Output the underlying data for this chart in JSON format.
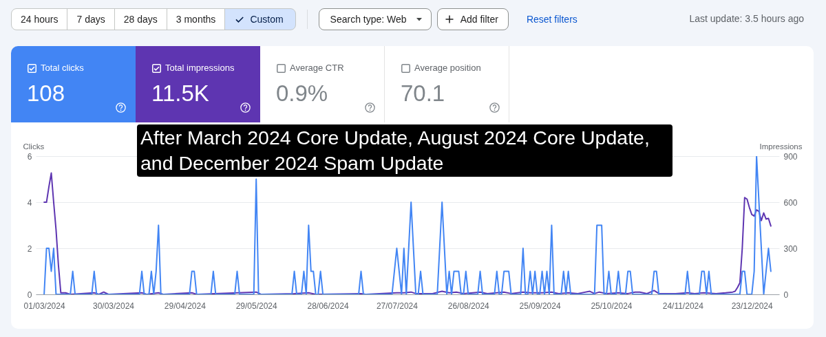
{
  "chart_data": [
    {
      "type": "other",
      "annotations": [
        "24 hours",
        "7 days",
        "28 days",
        "3 months",
        "Custom",
        "Search type: Web",
        "Add filter",
        "Reset filters",
        "Last update: 3.5 hours ago"
      ],
      "categories": [
        "Total clicks",
        "Total impressions",
        "Average CTR",
        "Average position"
      ],
      "value_labels": [
        "108",
        "11.5K",
        "0.9%",
        "70.1"
      ],
      "colors": [
        "#4285f4",
        "#5e35b1",
        "#ffffff",
        "#ffffff"
      ]
    },
    {
      "type": "line",
      "title": "After March 2024 Core Update, August 2024 Core Update, and December 2024 Spam Update",
      "ylabel": "Clicks",
      "y2label": "Impressions",
      "xlim": [
        "2024-02-26T12:00",
        "2025-01-03T12:00"
      ],
      "xticks": [
        {
          "value": "2024-03-01",
          "label": "01/03/2024"
        },
        {
          "value": "2024-03-30",
          "label": "30/03/2024"
        },
        {
          "value": "2024-04-29",
          "label": "29/04/2024"
        },
        {
          "value": "2024-05-29",
          "label": "29/05/2024"
        },
        {
          "value": "2024-06-28",
          "label": "28/06/2024"
        },
        {
          "value": "2024-07-27",
          "label": "27/07/2024"
        },
        {
          "value": "2024-08-26",
          "label": "26/08/2024"
        },
        {
          "value": "2024-09-25",
          "label": "25/09/2024"
        },
        {
          "value": "2024-10-25",
          "label": "25/10/2024"
        },
        {
          "value": "2024-11-24",
          "label": "24/11/2024"
        },
        {
          "value": "2024-12-23",
          "label": "23/12/2024"
        }
      ],
      "ylim": [
        0,
        6
      ],
      "yticks": [
        0,
        2,
        4,
        6
      ],
      "y2lim": [
        0,
        900
      ],
      "y2ticks": [
        0,
        300,
        600,
        900
      ],
      "grid": "y",
      "series": [
        {
          "color": "#4285f4",
          "x": [
            "2024-03-01",
            "2024-03-02",
            "2024-03-03",
            "2024-03-04",
            "2024-03-05",
            "2024-03-06",
            "2024-03-12",
            "2024-03-13",
            "2024-03-14",
            "2024-03-21",
            "2024-03-22",
            "2024-03-23",
            "2024-04-10",
            "2024-04-11",
            "2024-04-12",
            "2024-04-14",
            "2024-04-15",
            "2024-04-16",
            "2024-04-17",
            "2024-04-18",
            "2024-04-19",
            "2024-05-01",
            "2024-05-02",
            "2024-05-03",
            "2024-05-04",
            "2024-05-10",
            "2024-05-11",
            "2024-05-12",
            "2024-05-20",
            "2024-05-21",
            "2024-05-22",
            "2024-05-28",
            "2024-05-29",
            "2024-05-30",
            "2024-06-13",
            "2024-06-14",
            "2024-06-15",
            "2024-06-17",
            "2024-06-18",
            "2024-06-19",
            "2024-06-20",
            "2024-06-21",
            "2024-06-22",
            "2024-06-23",
            "2024-06-24",
            "2024-06-25",
            "2024-06-26",
            "2024-07-11",
            "2024-07-12",
            "2024-07-13",
            "2024-07-25",
            "2024-07-26",
            "2024-07-27",
            "2024-07-28",
            "2024-07-29",
            "2024-07-30",
            "2024-07-31",
            "2024-08-01",
            "2024-08-02",
            "2024-08-03",
            "2024-08-04",
            "2024-08-05",
            "2024-08-06",
            "2024-08-07",
            "2024-08-13",
            "2024-08-14",
            "2024-08-15",
            "2024-08-16",
            "2024-08-17",
            "2024-08-18",
            "2024-08-19",
            "2024-08-20",
            "2024-08-21",
            "2024-08-22",
            "2024-08-23",
            "2024-08-24",
            "2024-08-25",
            "2024-08-26",
            "2024-08-30",
            "2024-08-31",
            "2024-09-01",
            "2024-09-06",
            "2024-09-07",
            "2024-09-08",
            "2024-09-09",
            "2024-09-10",
            "2024-09-11",
            "2024-09-12",
            "2024-09-13",
            "2024-09-17",
            "2024-09-18",
            "2024-09-19",
            "2024-09-20",
            "2024-09-21",
            "2024-09-22",
            "2024-09-23",
            "2024-09-24",
            "2024-09-25",
            "2024-09-26",
            "2024-09-27",
            "2024-09-28",
            "2024-09-29",
            "2024-09-30",
            "2024-10-01",
            "2024-10-04",
            "2024-10-05",
            "2024-10-06",
            "2024-10-07",
            "2024-10-08",
            "2024-10-18",
            "2024-10-19",
            "2024-10-20",
            "2024-10-21",
            "2024-10-22",
            "2024-10-23",
            "2024-10-24",
            "2024-10-25",
            "2024-10-27",
            "2024-10-28",
            "2024-10-29",
            "2024-10-31",
            "2024-11-01",
            "2024-11-02",
            "2024-11-03",
            "2024-11-11",
            "2024-11-12",
            "2024-11-13",
            "2024-11-14",
            "2024-11-25",
            "2024-11-26",
            "2024-11-27",
            "2024-12-01",
            "2024-12-02",
            "2024-12-03",
            "2024-12-04",
            "2024-12-05",
            "2024-12-06",
            "2024-12-18",
            "2024-12-19",
            "2024-12-20",
            "2024-12-21",
            "2024-12-23",
            "2024-12-24",
            "2024-12-25",
            "2024-12-26",
            "2024-12-27",
            "2024-12-28",
            "2024-12-29",
            "2024-12-30",
            "2024-12-31"
          ],
          "values": [
            0,
            2,
            2,
            1,
            2,
            0,
            0,
            1,
            0,
            0,
            1,
            0,
            0,
            1,
            0,
            0,
            1,
            0,
            1,
            3,
            0,
            0,
            1,
            1,
            0,
            0,
            1,
            0,
            0,
            1,
            0,
            0,
            5,
            0,
            0,
            1,
            0,
            0,
            1,
            0,
            3,
            1,
            1,
            0,
            0,
            1,
            0,
            0,
            1,
            0,
            0,
            1,
            2,
            1,
            0,
            2,
            0,
            2,
            4,
            2,
            0,
            0,
            1,
            0,
            0,
            2,
            4,
            2,
            0,
            1,
            0,
            1,
            1,
            1,
            0,
            0,
            1,
            0,
            0,
            1,
            0,
            0,
            1,
            0,
            0,
            1,
            1,
            1,
            0,
            0,
            2,
            0,
            0,
            1,
            0,
            1,
            0,
            0,
            1,
            0,
            1,
            0,
            3,
            0,
            0,
            1,
            0,
            1,
            0,
            0,
            3,
            3,
            3,
            0,
            0,
            1,
            0,
            0,
            1,
            0,
            0,
            1,
            1,
            0,
            0,
            1,
            1,
            0,
            0,
            1,
            0,
            0,
            1,
            1,
            0,
            1,
            0,
            0,
            1,
            1,
            0,
            0,
            1,
            6,
            4,
            2,
            0,
            1,
            2,
            1
          ]
        },
        {
          "color": "#5e35b1",
          "axis": "y2",
          "x": [
            "2024-03-01",
            "2024-03-02",
            "2024-03-03",
            "2024-03-04",
            "2024-03-05",
            "2024-03-06",
            "2024-03-07",
            "2024-03-08",
            "2024-03-10",
            "2024-03-12",
            "2024-03-22",
            "2024-03-24",
            "2024-03-26",
            "2024-03-28",
            "2024-04-11",
            "2024-04-13",
            "2024-04-18",
            "2024-04-20",
            "2024-05-02",
            "2024-05-04",
            "2024-05-29",
            "2024-05-31",
            "2024-06-14",
            "2024-06-20",
            "2024-06-23",
            "2024-07-12",
            "2024-07-14",
            "2024-07-27",
            "2024-07-30",
            "2024-08-02",
            "2024-08-04",
            "2024-08-11",
            "2024-08-15",
            "2024-08-18",
            "2024-08-21",
            "2024-08-24",
            "2024-08-31",
            "2024-09-03",
            "2024-09-10",
            "2024-09-13",
            "2024-09-18",
            "2024-09-21",
            "2024-09-26",
            "2024-09-30",
            "2024-10-03",
            "2024-10-07",
            "2024-10-11",
            "2024-10-16",
            "2024-10-18",
            "2024-10-20",
            "2024-10-23",
            "2024-10-28",
            "2024-11-01",
            "2024-11-04",
            "2024-11-06",
            "2024-11-09",
            "2024-11-12",
            "2024-11-14",
            "2024-11-21",
            "2024-11-26",
            "2024-11-29",
            "2024-12-03",
            "2024-12-08",
            "2024-12-12",
            "2024-12-15",
            "2024-12-16",
            "2024-12-17",
            "2024-12-18",
            "2024-12-19",
            "2024-12-20",
            "2024-12-21",
            "2024-12-22",
            "2024-12-23",
            "2024-12-24",
            "2024-12-25",
            "2024-12-26",
            "2024-12-27",
            "2024-12-28",
            "2024-12-29",
            "2024-12-30",
            "2024-12-31"
          ],
          "values": [
            600,
            600,
            700,
            790,
            600,
            420,
            190,
            10,
            10,
            0,
            10,
            0,
            15,
            0,
            10,
            0,
            10,
            0,
            10,
            0,
            15,
            0,
            5,
            10,
            0,
            5,
            0,
            10,
            10,
            15,
            5,
            5,
            20,
            10,
            15,
            5,
            15,
            5,
            15,
            5,
            15,
            10,
            10,
            15,
            5,
            10,
            5,
            20,
            5,
            15,
            5,
            10,
            5,
            15,
            15,
            5,
            25,
            5,
            5,
            10,
            5,
            10,
            5,
            10,
            15,
            20,
            45,
            75,
            300,
            630,
            620,
            565,
            520,
            510,
            550,
            540,
            480,
            530,
            490,
            495,
            445
          ]
        }
      ]
    }
  ]
}
